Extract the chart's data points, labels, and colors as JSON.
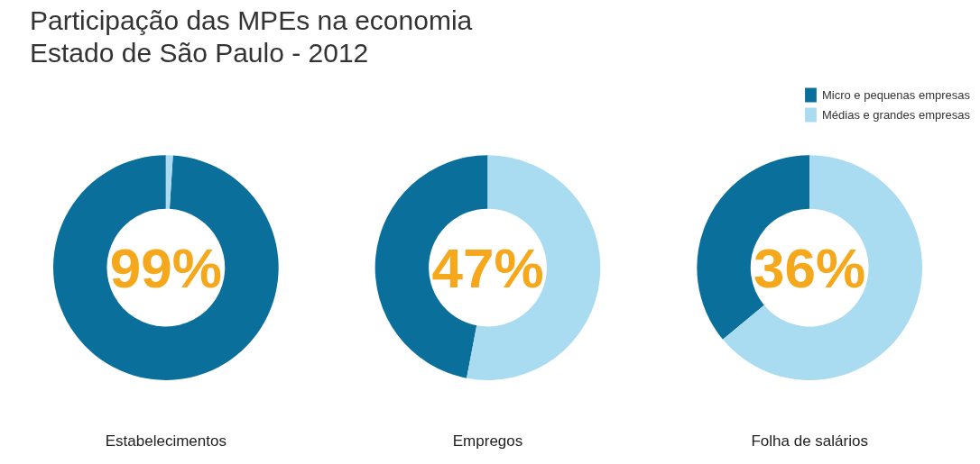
{
  "chart_data": [
    {
      "type": "donut",
      "title": "Participação das MPEs na economia",
      "subtitle": "Estado de São Paulo - 2012",
      "xlabel": "Estabelecimentos",
      "categories": [
        "Micro e pequenas empresas",
        "Médias e grandes empresas"
      ],
      "values": [
        99,
        1
      ],
      "colors": [
        "#0b6f9c",
        "#a9dcf1"
      ],
      "annotations": [
        "99%"
      ],
      "legend": "top right"
    },
    {
      "type": "donut",
      "xlabel": "Empregos",
      "categories": [
        null,
        null
      ],
      "values": [
        47,
        53
      ],
      "colors": [
        "#0b6f9c",
        "#a9dcf1"
      ],
      "annotations": [
        "47%"
      ]
    },
    {
      "type": "donut",
      "xlabel": "Folha de salários",
      "categories": [
        null,
        null
      ],
      "values": [
        36,
        64
      ],
      "colors": [
        "#0b6f9c",
        "#a9dcf1"
      ],
      "annotations": [
        "36%"
      ]
    }
  ]
}
